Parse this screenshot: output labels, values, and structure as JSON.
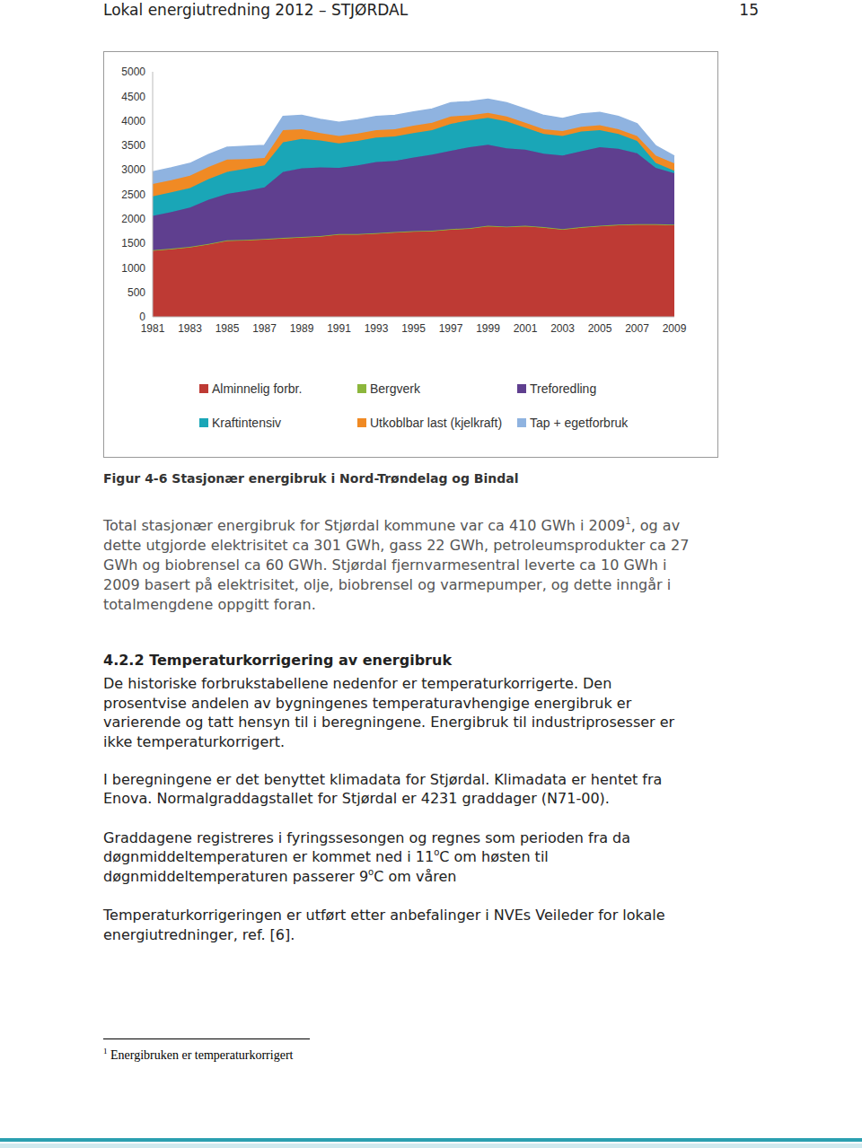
{
  "header": {
    "title": "Lokal energiutredning 2012 – STJØRDAL",
    "page": "15"
  },
  "chart_data": {
    "type": "area",
    "stacked": true,
    "grid": false,
    "legend": "bottom",
    "categories": [
      "1981",
      null,
      "1983",
      null,
      "1985",
      null,
      "1987",
      null,
      "1989",
      null,
      "1991",
      null,
      "1993",
      null,
      "1995",
      null,
      "1997",
      null,
      "1999",
      null,
      "2001",
      null,
      "2003",
      null,
      "2005",
      null,
      "2007",
      null,
      "2009"
    ],
    "ylim": [
      0,
      5000
    ],
    "yticks": [
      0,
      500,
      1000,
      1500,
      2000,
      2500,
      3000,
      3500,
      4000,
      4500,
      5000
    ],
    "series": [
      {
        "name": "Alminnelig forbr.",
        "color": "#be3a34",
        "values": [
          1350,
          1380,
          1420,
          1480,
          1550,
          1560,
          1580,
          1600,
          1620,
          1640,
          1680,
          1680,
          1700,
          1720,
          1740,
          1750,
          1780,
          1800,
          1850,
          1830,
          1850,
          1820,
          1780,
          1820,
          1850,
          1870,
          1880,
          1880,
          1870
        ]
      },
      {
        "name": "Bergverk",
        "color": "#8cb63c",
        "values": [
          10,
          10,
          10,
          10,
          10,
          10,
          10,
          10,
          10,
          10,
          10,
          10,
          10,
          10,
          10,
          10,
          10,
          10,
          10,
          10,
          10,
          10,
          10,
          10,
          10,
          10,
          10,
          10,
          10
        ]
      },
      {
        "name": "Treforedling",
        "color": "#5f3f8f",
        "values": [
          700,
          750,
          800,
          900,
          950,
          1000,
          1050,
          1350,
          1400,
          1400,
          1350,
          1400,
          1450,
          1450,
          1500,
          1550,
          1600,
          1650,
          1650,
          1600,
          1550,
          1500,
          1500,
          1550,
          1600,
          1550,
          1450,
          1150,
          1050
        ]
      },
      {
        "name": "Kraftintensiv",
        "color": "#1aa6b7",
        "values": [
          400,
          400,
          400,
          420,
          450,
          450,
          450,
          600,
          600,
          550,
          500,
          500,
          500,
          500,
          500,
          500,
          550,
          550,
          550,
          550,
          450,
          400,
          400,
          400,
          350,
          300,
          250,
          100,
          50
        ]
      },
      {
        "name": "Utkoblbar last (kjelkraft)",
        "color": "#f08a24",
        "values": [
          250,
          250,
          250,
          250,
          250,
          200,
          150,
          250,
          200,
          150,
          150,
          150,
          150,
          150,
          150,
          150,
          150,
          100,
          100,
          100,
          100,
          100,
          100,
          100,
          100,
          100,
          100,
          150,
          150
        ]
      },
      {
        "name": "Tap + egetforbruk",
        "color": "#8fb3e0",
        "values": [
          250,
          250,
          250,
          250,
          250,
          260,
          260,
          280,
          280,
          280,
          280,
          280,
          280,
          280,
          280,
          280,
          280,
          280,
          280,
          280,
          280,
          280,
          260,
          260,
          260,
          260,
          250,
          200,
          150
        ]
      }
    ]
  },
  "caption": "Figur 4-6 Stasjonær energibruk i Nord-Trøndelag og Bindal",
  "paragraph_1": [
    [
      "Total stasjonær energibruk for Stjørdal kommune var ca 410 GWh i 2009",
      {
        "sup": "1"
      },
      ", og av"
    ],
    [
      "dette utgjorde elektrisitet ca 301 GWh, gass 22 GWh, petroleumsprodukter ca 27"
    ],
    [
      "GWh og biobrensel ca 60 GWh. Stjørdal fjernvarmesentral leverte ca 10 GWh i"
    ],
    [
      "2009 basert på elektrisitet, olje, biobrensel og varmepumper, og dette inngår i"
    ],
    [
      "totalmengdene oppgitt foran."
    ]
  ],
  "heading": "4.2.2 Temperaturkorrigering av energibruk",
  "paragraph_2": [
    [
      "De historiske forbrukstabellene nedenfor er temperaturkorrigerte. Den"
    ],
    [
      "prosentvise andelen av bygningenes temperaturavhengige energibruk er"
    ],
    [
      "varierende og tatt hensyn til i beregningene. Energibruk til industriprosesser er"
    ],
    [
      "ikke temperaturkorrigert."
    ]
  ],
  "paragraph_3": [
    [
      "I beregningene er det benyttet klimadata for Stjørdal. Klimadata er hentet fra"
    ],
    [
      "Enova. Normalgraddagstallet for Stjørdal er 4231 graddager (N71-00)."
    ]
  ],
  "paragraph_4": [
    [
      "Graddagene registreres i fyringssesongen og regnes som perioden fra da"
    ],
    [
      "døgnmiddeltemperaturen er kommet ned i 11",
      {
        "sup": "o"
      },
      "C om høsten til"
    ],
    [
      "døgnmiddeltemperaturen passerer 9",
      {
        "sup": "o"
      },
      "C om våren"
    ]
  ],
  "paragraph_5": [
    [
      "Temperaturkorrigeringen er utført etter anbefalinger i NVEs Veileder for lokale"
    ],
    [
      "energiutredninger, ref. [6]."
    ]
  ],
  "footnote": {
    "mark": "1",
    "text": "Energibruken er temperaturkorrigert"
  }
}
